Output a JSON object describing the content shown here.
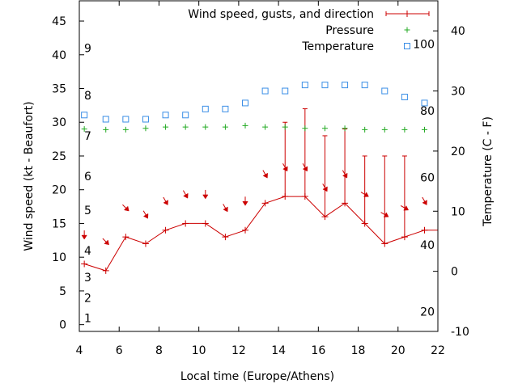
{
  "chart_data": {
    "type": "line",
    "title": "",
    "xlabel": "Local time (Europe/Athens)",
    "ylabel": "Wind speed (kt - Beaufort)",
    "y2label": "Temperature (C - F)",
    "xlim": [
      4,
      22
    ],
    "ylim": [
      -1,
      48
    ],
    "y2lim": [
      -10,
      45
    ],
    "x_ticks": [
      4,
      6,
      8,
      10,
      12,
      14,
      16,
      18,
      20,
      22
    ],
    "y_ticks": [
      0,
      5,
      10,
      15,
      20,
      25,
      30,
      35,
      40,
      45
    ],
    "y2_ticks": [
      -10,
      0,
      10,
      20,
      30,
      40
    ],
    "beaufort_scale": {
      "labels": [
        "1",
        "2",
        "3",
        "4",
        "5",
        "6",
        "7",
        "8",
        "9"
      ],
      "kt": [
        1,
        4,
        7,
        11,
        17,
        22,
        28,
        34,
        41
      ]
    },
    "fahrenheit_scale": {
      "labels": [
        "20",
        "40",
        "60",
        "80",
        "100"
      ],
      "celsius": [
        -6.7,
        4.4,
        15.6,
        26.7,
        37.8
      ]
    },
    "legend_position": "top-right",
    "grid": false,
    "series": [
      {
        "name": "Wind speed, gusts, and direction",
        "color": "#cc0000",
        "marker": "plus-line-errorbar",
        "x": [
          4.25,
          5.33,
          6.33,
          7.33,
          8.33,
          9.33,
          10.33,
          11.33,
          12.33,
          13.33,
          14.33,
          15.33,
          16.33,
          17.33,
          18.33,
          19.33,
          20.33,
          21.33,
          22
        ],
        "y": [
          9,
          8,
          13,
          12,
          14,
          15,
          15,
          13,
          14,
          18,
          19,
          19,
          16,
          18,
          15,
          12,
          13,
          14,
          14
        ],
        "gusts": [
          null,
          null,
          null,
          null,
          null,
          null,
          null,
          null,
          null,
          null,
          30,
          32,
          28,
          29,
          25,
          25,
          25,
          null,
          null
        ],
        "direction_deg": [
          0,
          315,
          315,
          330,
          330,
          330,
          0,
          330,
          0,
          330,
          330,
          330,
          330,
          330,
          300,
          300,
          300,
          330
        ]
      },
      {
        "name": "Pressure",
        "color": "#22aa22",
        "marker": "plus",
        "x": [
          4.25,
          5.33,
          6.33,
          7.33,
          8.33,
          9.33,
          10.33,
          11.33,
          12.33,
          13.33,
          14.33,
          15.33,
          16.33,
          17.33,
          18.33,
          19.33,
          20.33,
          21.33
        ],
        "y": [
          29,
          28.9,
          28.9,
          29.1,
          29.3,
          29.3,
          29.3,
          29.3,
          29.5,
          29.3,
          29.3,
          29.1,
          29.1,
          29.1,
          28.9,
          28.9,
          28.9,
          28.9
        ]
      },
      {
        "name": "Temperature",
        "color": "#3a8ee6",
        "marker": "open-square",
        "axis": "y2",
        "x": [
          4.25,
          5.33,
          6.33,
          7.33,
          8.33,
          9.33,
          10.33,
          11.33,
          12.33,
          13.33,
          14.33,
          15.33,
          16.33,
          17.33,
          18.33,
          19.33,
          20.33,
          21.33
        ],
        "y": [
          26,
          25.3,
          25.3,
          25.3,
          26,
          26,
          27,
          27,
          28,
          30,
          30,
          31,
          31,
          31,
          31,
          30,
          29,
          28
        ]
      }
    ]
  }
}
